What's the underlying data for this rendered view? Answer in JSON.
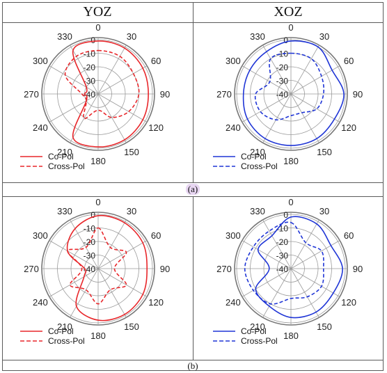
{
  "headers": {
    "left": "YOZ",
    "right": "XOZ"
  },
  "row_labels": [
    "(a)",
    "(b)"
  ],
  "colors": {
    "yoz": "#e8262a",
    "xoz": "#1f35d6",
    "grid": "#9a9a9a",
    "label_highlight": "#e8d6f2"
  },
  "chart_data": [
    {
      "type": "polar-line",
      "panel": "(a)",
      "plane": "YOZ",
      "angle_unit": "deg",
      "angle_ticks": [
        0,
        30,
        60,
        90,
        120,
        150,
        180,
        210,
        240,
        270,
        300,
        330
      ],
      "radial_ticks": [
        0,
        -10,
        -20,
        -30,
        -40
      ],
      "radial_unit": "dB",
      "rlim": [
        -40,
        0
      ],
      "color": "#e8262a",
      "legend_position": "bottom-left",
      "series": [
        {
          "name": "Co-Pol",
          "style": "solid",
          "angles": [
            0,
            30,
            60,
            90,
            120,
            150,
            180,
            210,
            240,
            270,
            300,
            330
          ],
          "values": [
            -1,
            -1,
            -2,
            -3,
            -2,
            -1,
            -1,
            -3,
            -30,
            -30,
            -30,
            -3
          ]
        },
        {
          "name": "Cross-Pol",
          "style": "dashed",
          "angles": [
            0,
            30,
            60,
            90,
            120,
            150,
            180,
            210,
            240,
            270,
            300,
            330
          ],
          "values": [
            -8,
            -8,
            -10,
            -10,
            -14,
            -20,
            -28,
            -19,
            -30,
            -28,
            -12,
            -8
          ]
        }
      ]
    },
    {
      "type": "polar-line",
      "panel": "(a)",
      "plane": "XOZ",
      "angle_unit": "deg",
      "angle_ticks": [
        0,
        30,
        60,
        90,
        120,
        150,
        180,
        210,
        240,
        270,
        300,
        330
      ],
      "radial_ticks": [
        0,
        -10,
        -20,
        -30,
        -40
      ],
      "radial_unit": "dB",
      "rlim": [
        -40,
        0
      ],
      "color": "#1f35d6",
      "legend_position": "bottom-left",
      "series": [
        {
          "name": "Co-Pol",
          "style": "solid",
          "angles": [
            0,
            30,
            60,
            90,
            120,
            150,
            180,
            210,
            240,
            270,
            300,
            330
          ],
          "values": [
            -1,
            0,
            -5,
            -1,
            -3,
            -2,
            -2,
            -2,
            -3,
            -5,
            -5,
            -4
          ]
        },
        {
          "name": "Cross-Pol",
          "style": "dashed",
          "angles": [
            0,
            30,
            60,
            90,
            120,
            150,
            180,
            210,
            240,
            270,
            300,
            330
          ],
          "values": [
            -10,
            -10,
            -14,
            -16,
            -18,
            -24,
            -24,
            -18,
            -14,
            -14,
            -22,
            -10
          ]
        }
      ]
    },
    {
      "type": "polar-line",
      "panel": "(b)",
      "plane": "YOZ",
      "angle_unit": "deg",
      "angle_ticks": [
        0,
        30,
        60,
        90,
        120,
        150,
        180,
        210,
        240,
        270,
        300,
        330
      ],
      "radial_ticks": [
        0,
        -10,
        -20,
        -30,
        -40
      ],
      "radial_unit": "dB",
      "rlim": [
        -40,
        0
      ],
      "color": "#e8262a",
      "legend_position": "bottom-left",
      "series": [
        {
          "name": "Co-Pol",
          "style": "solid",
          "angles": [
            0,
            30,
            60,
            90,
            120,
            150,
            180,
            210,
            240,
            270,
            300,
            330
          ],
          "values": [
            -1,
            -1,
            -2,
            -4,
            -2,
            -1,
            -2,
            -8,
            -28,
            -30,
            -14,
            -6
          ]
        },
        {
          "name": "Cross-Pol",
          "style": "dashed",
          "angles": [
            0,
            30,
            60,
            90,
            120,
            150,
            180,
            210,
            240,
            270,
            300,
            330
          ],
          "values": [
            -10,
            -22,
            -16,
            -28,
            -16,
            -22,
            -14,
            -22,
            -16,
            -28,
            -14,
            -22
          ]
        }
      ]
    },
    {
      "type": "polar-line",
      "panel": "(b)",
      "plane": "XOZ",
      "angle_unit": "deg",
      "angle_ticks": [
        0,
        30,
        60,
        90,
        120,
        150,
        180,
        210,
        240,
        270,
        300,
        330
      ],
      "radial_ticks": [
        0,
        -10,
        -20,
        -30,
        -40
      ],
      "radial_unit": "dB",
      "rlim": [
        -40,
        0
      ],
      "color": "#1f35d6",
      "legend_position": "bottom-left",
      "series": [
        {
          "name": "Co-Pol",
          "style": "solid",
          "angles": [
            0,
            30,
            60,
            90,
            120,
            150,
            180,
            210,
            240,
            270,
            300,
            330
          ],
          "values": [
            -2,
            -2,
            -6,
            -2,
            -4,
            -3,
            -4,
            -8,
            -10,
            -24,
            -12,
            -12
          ]
        },
        {
          "name": "Cross-Pol",
          "style": "dashed",
          "angles": [
            0,
            30,
            60,
            90,
            120,
            150,
            180,
            210,
            240,
            270,
            300,
            330
          ],
          "values": [
            -6,
            -18,
            -14,
            -16,
            -14,
            -16,
            -18,
            -10,
            -8,
            -6,
            -8,
            -8
          ]
        }
      ]
    }
  ]
}
